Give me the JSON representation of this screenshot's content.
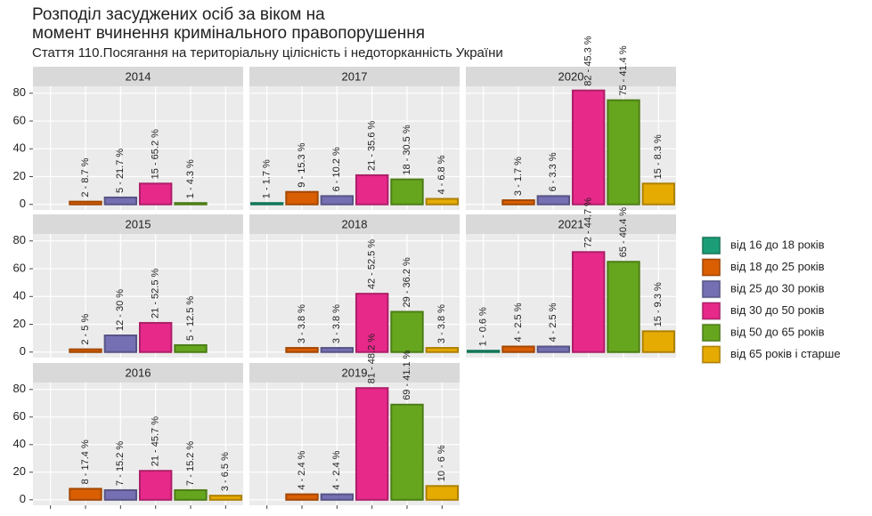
{
  "title": "Розподіл засуджених осіб за віком на",
  "title_line2": "момент вчинення кримінального правопорушення",
  "subtitle": "Стаття 110.Посягання на територіальну цілісність і недоторканність України",
  "legend": {
    "position": "right",
    "items": [
      {
        "name": "від 16 до 18 років",
        "color": "#1b9e77"
      },
      {
        "name": "від 18 до 25 років",
        "color": "#d95f02"
      },
      {
        "name": "від 25 до 30 років",
        "color": "#7570b3"
      },
      {
        "name": "від 30 до 50 років",
        "color": "#e7298a"
      },
      {
        "name": "від 50 до 65 років",
        "color": "#66a61e"
      },
      {
        "name": "від 65 років і старше",
        "color": "#e6ab02"
      }
    ]
  },
  "chart_data": [
    {
      "type": "bar",
      "title": "2014",
      "values": [
        null,
        2,
        5,
        15,
        1,
        null
      ],
      "value_labels": [
        null,
        "2 - 8.7 %",
        "5 - 21.7 %",
        "15 - 65.2 %",
        "1 - 4.3 %",
        null
      ],
      "ylim": [
        -4,
        85
      ],
      "yticks": [
        0,
        20,
        40,
        60,
        80
      ],
      "grid": true
    },
    {
      "type": "bar",
      "title": "2015",
      "values": [
        null,
        2,
        12,
        21,
        5,
        null
      ],
      "value_labels": [
        null,
        "2 - 5 %",
        "12 - 30 %",
        "21 - 52.5 %",
        "5 - 12.5 %",
        null
      ],
      "ylim": [
        -4,
        85
      ],
      "yticks": [
        0,
        20,
        40,
        60,
        80
      ],
      "grid": true
    },
    {
      "type": "bar",
      "title": "2016",
      "values": [
        null,
        8,
        7,
        21,
        7,
        3
      ],
      "value_labels": [
        null,
        "8 - 17.4 %",
        "7 - 15.2 %",
        "21 - 45.7 %",
        "7 - 15.2 %",
        "3 - 6.5 %"
      ],
      "ylim": [
        -4,
        85
      ],
      "yticks": [
        0,
        20,
        40,
        60,
        80
      ],
      "grid": true
    },
    {
      "type": "bar",
      "title": "2017",
      "values": [
        1,
        9,
        6,
        21,
        18,
        4
      ],
      "value_labels": [
        "1 - 1.7 %",
        "9 - 15.3 %",
        "6 - 10.2 %",
        "21 - 35.6 %",
        "18 - 30.5 %",
        "4 - 6.8 %"
      ],
      "ylim": [
        -4,
        85
      ],
      "yticks": [
        0,
        20,
        40,
        60,
        80
      ],
      "grid": true
    },
    {
      "type": "bar",
      "title": "2018",
      "values": [
        null,
        3,
        3,
        42,
        29,
        3
      ],
      "value_labels": [
        null,
        "3 - 3.8 %",
        "3 - 3.8 %",
        "42 - 52.5 %",
        "29 - 36.2 %",
        "3 - 3.8 %"
      ],
      "ylim": [
        -4,
        85
      ],
      "yticks": [
        0,
        20,
        40,
        60,
        80
      ],
      "grid": true
    },
    {
      "type": "bar",
      "title": "2019",
      "values": [
        null,
        4,
        4,
        81,
        69,
        10
      ],
      "value_labels": [
        null,
        "4 - 2.4 %",
        "4 - 2.4 %",
        "81 - 48.2 %",
        "69 - 41.1 %",
        "10 - 6 %"
      ],
      "ylim": [
        -4,
        85
      ],
      "yticks": [
        0,
        20,
        40,
        60,
        80
      ],
      "grid": true
    },
    {
      "type": "bar",
      "title": "2020",
      "values": [
        null,
        3,
        6,
        82,
        75,
        15
      ],
      "value_labels": [
        null,
        "3 - 1.7 %",
        "6 - 3.3 %",
        "82 - 45.3 %",
        "75 - 41.4 %",
        "15 - 8.3 %"
      ],
      "ylim": [
        -4,
        85
      ],
      "yticks": [
        0,
        20,
        40,
        60,
        80
      ],
      "grid": true
    },
    {
      "type": "bar",
      "title": "2021",
      "values": [
        1,
        4,
        4,
        72,
        65,
        15
      ],
      "value_labels": [
        "1 - 0.6 %",
        "4 - 2.5 %",
        "4 - 2.5 %",
        "72 - 44.7 %",
        "65 - 40.4 %",
        "15 - 9.3 %"
      ],
      "ylim": [
        -4,
        85
      ],
      "yticks": [
        0,
        20,
        40,
        60,
        80
      ],
      "grid": true
    }
  ]
}
